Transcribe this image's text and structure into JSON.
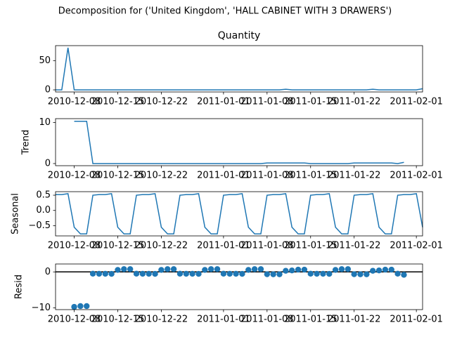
{
  "title": "Decomposition for ('United Kingdom', 'HALL CABINET WITH 3 DRAWERS')",
  "chart_data": [
    {
      "type": "line",
      "title": "Quantity",
      "color": "#1f77b4",
      "x": [
        "2010-12-05",
        "2010-12-06",
        "2010-12-07",
        "2010-12-08",
        "2010-12-09",
        "2010-12-10",
        "2010-12-11",
        "2010-12-12",
        "2010-12-13",
        "2010-12-14",
        "2010-12-15",
        "2010-12-16",
        "2010-12-17",
        "2010-12-18",
        "2010-12-19",
        "2010-12-20",
        "2010-12-21",
        "2010-12-22",
        "2010-12-23",
        "2010-12-24",
        "2010-12-25",
        "2010-12-26",
        "2010-12-27",
        "2010-12-28",
        "2010-12-29",
        "2010-12-30",
        "2010-12-31",
        "2011-01-01",
        "2011-01-02",
        "2011-01-03",
        "2011-01-04",
        "2011-01-05",
        "2011-01-06",
        "2011-01-07",
        "2011-01-08",
        "2011-01-09",
        "2011-01-10",
        "2011-01-11",
        "2011-01-12",
        "2011-01-13",
        "2011-01-14",
        "2011-01-15",
        "2011-01-16",
        "2011-01-17",
        "2011-01-18",
        "2011-01-19",
        "2011-01-20",
        "2011-01-21",
        "2011-01-22",
        "2011-01-23",
        "2011-01-24",
        "2011-01-25",
        "2011-01-26",
        "2011-01-27",
        "2011-01-28",
        "2011-01-29",
        "2011-01-30",
        "2011-01-31",
        "2011-02-01",
        "2011-02-02"
      ],
      "values": [
        0,
        0,
        72,
        0,
        0,
        0,
        0,
        0,
        0,
        0,
        0,
        0,
        0,
        0,
        0,
        0,
        0,
        0,
        0,
        0,
        0,
        0,
        0,
        0,
        0,
        0,
        0,
        0,
        0,
        0,
        0,
        0,
        0,
        0,
        0,
        0,
        0,
        1,
        0,
        0,
        0,
        0,
        0,
        0,
        0,
        0,
        0,
        0,
        0,
        0,
        0,
        1,
        0,
        0,
        0,
        0,
        0,
        0,
        0,
        2
      ],
      "xlim": [
        "2010-12-05",
        "2011-02-02"
      ],
      "xticks": [
        "2010-12-08",
        "2010-12-15",
        "2010-12-22",
        "2011-01-01",
        "2011-01-08",
        "2011-01-15",
        "2011-01-22",
        "2011-02-01"
      ],
      "ylim": [
        -3.6,
        75.6
      ],
      "yticks": [
        0,
        50
      ]
    },
    {
      "type": "line",
      "ylabel": "Trend",
      "color": "#1f77b4",
      "x": [
        "2010-12-05",
        "2010-12-06",
        "2010-12-07",
        "2010-12-08",
        "2010-12-09",
        "2010-12-10",
        "2010-12-11",
        "2010-12-12",
        "2010-12-13",
        "2010-12-14",
        "2010-12-15",
        "2010-12-16",
        "2010-12-17",
        "2010-12-18",
        "2010-12-19",
        "2010-12-20",
        "2010-12-21",
        "2010-12-22",
        "2010-12-23",
        "2010-12-24",
        "2010-12-25",
        "2010-12-26",
        "2010-12-27",
        "2010-12-28",
        "2010-12-29",
        "2010-12-30",
        "2010-12-31",
        "2011-01-01",
        "2011-01-02",
        "2011-01-03",
        "2011-01-04",
        "2011-01-05",
        "2011-01-06",
        "2011-01-07",
        "2011-01-08",
        "2011-01-09",
        "2011-01-10",
        "2011-01-11",
        "2011-01-12",
        "2011-01-13",
        "2011-01-14",
        "2011-01-15",
        "2011-01-16",
        "2011-01-17",
        "2011-01-18",
        "2011-01-19",
        "2011-01-20",
        "2011-01-21",
        "2011-01-22",
        "2011-01-23",
        "2011-01-24",
        "2011-01-25",
        "2011-01-26",
        "2011-01-27",
        "2011-01-28",
        "2011-01-29",
        "2011-01-30",
        "2011-01-31",
        "2011-02-01",
        "2011-02-02"
      ],
      "values": [
        null,
        null,
        null,
        10.29,
        10.29,
        10.29,
        0,
        0,
        0,
        0,
        0,
        0,
        0,
        0,
        0,
        0,
        0,
        0,
        0,
        0,
        0,
        0,
        0,
        0,
        0,
        0,
        0,
        0,
        0,
        0,
        0,
        0,
        0,
        0,
        0.14,
        0.14,
        0.14,
        0.14,
        0.14,
        0.14,
        0.14,
        0,
        0,
        0,
        0,
        0,
        0,
        0,
        0.14,
        0.14,
        0.14,
        0.14,
        0.14,
        0.14,
        0.14,
        0,
        0.29,
        null,
        null,
        null
      ],
      "xlim": [
        "2010-12-05",
        "2011-02-02"
      ],
      "xticks": [
        "2010-12-08",
        "2010-12-15",
        "2010-12-22",
        "2011-01-01",
        "2011-01-08",
        "2011-01-15",
        "2011-01-22",
        "2011-02-01"
      ],
      "ylim": [
        -0.52,
        10.92
      ],
      "yticks": [
        0,
        10
      ]
    },
    {
      "type": "line",
      "ylabel": "Seasonal",
      "color": "#1f77b4",
      "x": [
        "2010-12-05",
        "2010-12-06",
        "2010-12-07",
        "2010-12-08",
        "2010-12-09",
        "2010-12-10",
        "2010-12-11",
        "2010-12-12",
        "2010-12-13",
        "2010-12-14",
        "2010-12-15",
        "2010-12-16",
        "2010-12-17",
        "2010-12-18",
        "2010-12-19",
        "2010-12-20",
        "2010-12-21",
        "2010-12-22",
        "2010-12-23",
        "2010-12-24",
        "2010-12-25",
        "2010-12-26",
        "2010-12-27",
        "2010-12-28",
        "2010-12-29",
        "2010-12-30",
        "2010-12-31",
        "2011-01-01",
        "2011-01-02",
        "2011-01-03",
        "2011-01-04",
        "2011-01-05",
        "2011-01-06",
        "2011-01-07",
        "2011-01-08",
        "2011-01-09",
        "2011-01-10",
        "2011-01-11",
        "2011-01-12",
        "2011-01-13",
        "2011-01-14",
        "2011-01-15",
        "2011-01-16",
        "2011-01-17",
        "2011-01-18",
        "2011-01-19",
        "2011-01-20",
        "2011-01-21",
        "2011-01-22",
        "2011-01-23",
        "2011-01-24",
        "2011-01-25",
        "2011-01-26",
        "2011-01-27",
        "2011-01-28",
        "2011-01-29",
        "2011-01-30",
        "2011-01-31",
        "2011-02-01",
        "2011-02-02"
      ],
      "values": [
        0.52,
        0.52,
        0.55,
        -0.55,
        -0.77,
        -0.77,
        0.5,
        0.52,
        0.52,
        0.55,
        -0.55,
        -0.77,
        -0.77,
        0.5,
        0.52,
        0.52,
        0.55,
        -0.55,
        -0.77,
        -0.77,
        0.5,
        0.52,
        0.52,
        0.55,
        -0.55,
        -0.77,
        -0.77,
        0.5,
        0.52,
        0.52,
        0.55,
        -0.55,
        -0.77,
        -0.77,
        0.5,
        0.52,
        0.52,
        0.55,
        -0.55,
        -0.77,
        -0.77,
        0.5,
        0.52,
        0.52,
        0.55,
        -0.55,
        -0.77,
        -0.77,
        0.5,
        0.52,
        0.52,
        0.55,
        -0.55,
        -0.77,
        -0.77,
        0.5,
        0.52,
        0.52,
        0.55,
        -0.55
      ],
      "xlim": [
        "2010-12-05",
        "2011-02-02"
      ],
      "xticks": [
        "2010-12-08",
        "2010-12-15",
        "2010-12-22",
        "2011-01-01",
        "2011-01-08",
        "2011-01-15",
        "2011-01-22",
        "2011-02-01"
      ],
      "ylim": [
        -0.836,
        0.616
      ],
      "yticks": [
        {
          "value": -0.5,
          "label": "−0.5"
        },
        {
          "value": 0,
          "label": "0.0"
        },
        0.5
      ]
    },
    {
      "type": "scatter",
      "ylabel": "Resid",
      "color": "#1f77b4",
      "zero_line": true,
      "x": [
        "2010-12-05",
        "2010-12-06",
        "2010-12-07",
        "2010-12-08",
        "2010-12-09",
        "2010-12-10",
        "2010-12-11",
        "2010-12-12",
        "2010-12-13",
        "2010-12-14",
        "2010-12-15",
        "2010-12-16",
        "2010-12-17",
        "2010-12-18",
        "2010-12-19",
        "2010-12-20",
        "2010-12-21",
        "2010-12-22",
        "2010-12-23",
        "2010-12-24",
        "2010-12-25",
        "2010-12-26",
        "2010-12-27",
        "2010-12-28",
        "2010-12-29",
        "2010-12-30",
        "2010-12-31",
        "2011-01-01",
        "2011-01-02",
        "2011-01-03",
        "2011-01-04",
        "2011-01-05",
        "2011-01-06",
        "2011-01-07",
        "2011-01-08",
        "2011-01-09",
        "2011-01-10",
        "2011-01-11",
        "2011-01-12",
        "2011-01-13",
        "2011-01-14",
        "2011-01-15",
        "2011-01-16",
        "2011-01-17",
        "2011-01-18",
        "2011-01-19",
        "2011-01-20",
        "2011-01-21",
        "2011-01-22",
        "2011-01-23",
        "2011-01-24",
        "2011-01-25",
        "2011-01-26",
        "2011-01-27",
        "2011-01-28",
        "2011-01-29",
        "2011-01-30",
        "2011-01-31",
        "2011-02-01",
        "2011-02-02"
      ],
      "values": [
        null,
        null,
        null,
        -9.74,
        -9.52,
        -9.52,
        -0.5,
        -0.52,
        -0.52,
        -0.55,
        0.55,
        0.77,
        0.77,
        -0.5,
        -0.52,
        -0.52,
        -0.55,
        0.55,
        0.77,
        0.77,
        -0.5,
        -0.52,
        -0.52,
        -0.55,
        0.55,
        0.77,
        0.77,
        -0.5,
        -0.52,
        -0.52,
        -0.55,
        0.55,
        0.77,
        0.77,
        -0.64,
        -0.66,
        -0.66,
        0.31,
        0.41,
        0.63,
        0.63,
        -0.5,
        -0.52,
        -0.52,
        -0.55,
        0.55,
        0.77,
        0.77,
        -0.64,
        -0.66,
        -0.66,
        0.31,
        0.41,
        0.63,
        0.63,
        -0.5,
        -0.81,
        null,
        null,
        null
      ],
      "xlim": [
        "2010-12-05",
        "2011-02-02"
      ],
      "xticks": [
        "2010-12-08",
        "2010-12-15",
        "2010-12-22",
        "2011-01-01",
        "2011-01-08",
        "2011-01-15",
        "2011-01-22",
        "2011-02-01"
      ],
      "ylim": [
        -10.5,
        2.2
      ],
      "yticks": [
        {
          "value": -10,
          "label": "−10"
        },
        0
      ]
    }
  ]
}
